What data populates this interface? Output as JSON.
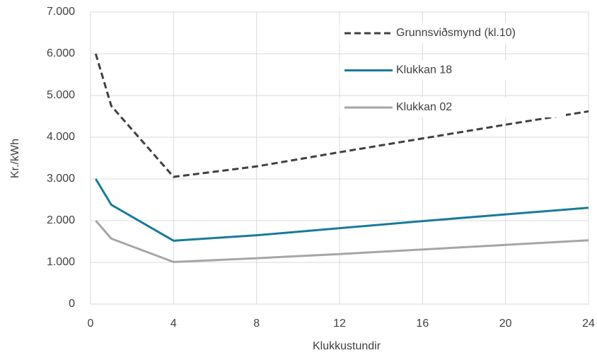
{
  "chart_data": {
    "type": "line",
    "x_label": "Klukkustundir",
    "y_label": "Kr./kWh",
    "x": [
      0.25,
      1,
      4,
      8,
      12,
      16,
      20,
      24
    ],
    "series": [
      {
        "name": "Grunnsviðsmynd (kl.10)",
        "color": "#404040",
        "dash": true,
        "values": [
          6000,
          4750,
          3050,
          3300,
          3640,
          3970,
          4300,
          4620
        ]
      },
      {
        "name": "Klukkan 18",
        "color": "#1a7a9a",
        "dash": false,
        "values": [
          3000,
          2380,
          1520,
          1650,
          1820,
          1990,
          2150,
          2310
        ]
      },
      {
        "name": "Klukkan 02",
        "color": "#a6a6a6",
        "dash": false,
        "values": [
          2000,
          1570,
          1010,
          1100,
          1200,
          1310,
          1420,
          1530
        ]
      }
    ],
    "xlim": [
      0,
      24
    ],
    "xticks": [
      0,
      4,
      8,
      12,
      16,
      20,
      24
    ],
    "ylim": [
      0,
      7000
    ],
    "yticks": [
      0,
      {
        "value": 1000,
        "label": "1.000"
      },
      {
        "value": 2000,
        "label": "2.000"
      },
      {
        "value": 3000,
        "label": "3.000"
      },
      {
        "value": 4000,
        "label": "4.000"
      },
      {
        "value": 5000,
        "label": "5.000"
      },
      {
        "value": 6000,
        "label": "6.000"
      },
      {
        "value": 7000,
        "label": "7.000"
      }
    ],
    "grid": true,
    "legend": "top-right"
  }
}
